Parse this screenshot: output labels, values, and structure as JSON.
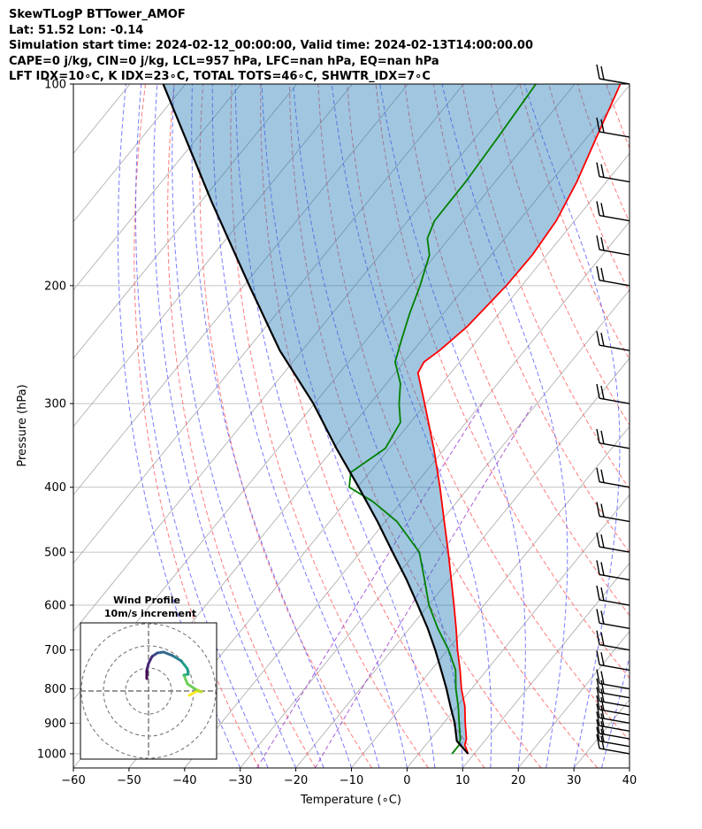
{
  "header": {
    "line1": "SkewTLogP BTTower_AMOF",
    "line2": "Lat: 51.52   Lon: -0.14",
    "line3": "Simulation start time: 2024-02-12_00:00:00, Valid time: 2024-02-13T14:00:00.00",
    "line4": "CAPE=0 j/kg, CIN=0 j/kg, LCL=957 hPa, LFC=nan hPa, EQ=nan hPa",
    "line5": "LFT IDX=10∘C, K IDX=23∘C, TOTAL TOTS=46∘C, SHWTR_IDX=7∘C"
  },
  "chart_data": {
    "type": "line",
    "xlabel": "Temperature (∘C)",
    "ylabel": "Pressure (hPa)",
    "xlim": [
      -60,
      40
    ],
    "ylim": [
      1050,
      100
    ],
    "y_scale": "log",
    "grid": true,
    "x_ticks": [
      "−60",
      "−50",
      "−40",
      "−30",
      "−20",
      "−10",
      "0",
      "10",
      "20",
      "30",
      "40"
    ],
    "x_tick_values": [
      -60,
      -50,
      -40,
      -30,
      -20,
      -10,
      0,
      10,
      20,
      30,
      40
    ],
    "y_ticks": [
      "100",
      "200",
      "300",
      "400",
      "500",
      "600",
      "700",
      "800",
      "900",
      "1000"
    ],
    "y_tick_values": [
      100,
      200,
      300,
      400,
      500,
      600,
      700,
      800,
      900,
      1000
    ],
    "skew": "isotherms skewed",
    "series": [
      {
        "role": "temperature",
        "color": "#ff0000",
        "pressure": [
          1000,
          970,
          950,
          900,
          850,
          800,
          750,
          700,
          650,
          600,
          550,
          500,
          450,
          400,
          350,
          300,
          270,
          260,
          250,
          230,
          200,
          180,
          160,
          140,
          120,
          100
        ],
        "temperature": [
          8.9,
          7.0,
          6.4,
          3.9,
          1.4,
          -1.8,
          -4.8,
          -8.2,
          -11.6,
          -15.4,
          -19.6,
          -24.2,
          -29.4,
          -35.2,
          -42.0,
          -50.2,
          -55.9,
          -56.4,
          -55.3,
          -53.8,
          -52.8,
          -52.6,
          -53.3,
          -55.3,
          -58.3,
          -61.8
        ]
      },
      {
        "role": "dewpoint",
        "color": "#008000",
        "pressure": [
          1000,
          970,
          950,
          900,
          850,
          800,
          750,
          700,
          650,
          600,
          550,
          500,
          450,
          420,
          400,
          380,
          350,
          320,
          300,
          280,
          260,
          240,
          220,
          200,
          180,
          170,
          160,
          140,
          120,
          100
        ],
        "temperature": [
          6.0,
          6.0,
          5.3,
          2.8,
          0.2,
          -2.8,
          -5.6,
          -9.8,
          -14.9,
          -19.9,
          -24.4,
          -29.4,
          -37.9,
          -45.2,
          -51.5,
          -53.4,
          -50.7,
          -51.8,
          -54.8,
          -57.5,
          -61.6,
          -63.8,
          -66.1,
          -68.3,
          -71.1,
          -73.9,
          -75.2,
          -75.3,
          -76.0,
          -77.0
        ]
      },
      {
        "role": "parcel",
        "color": "#000000",
        "pressure": [
          1000,
          957,
          900,
          850,
          800,
          750,
          700,
          650,
          600,
          550,
          500,
          450,
          400,
          350,
          300,
          250,
          200,
          150,
          100
        ],
        "temperature": [
          8.9,
          5.0,
          2.0,
          -1.2,
          -4.5,
          -8.2,
          -12.2,
          -16.7,
          -21.9,
          -27.6,
          -34.2,
          -41.4,
          -49.8,
          -59.5,
          -70.2,
          -84.0,
          -99.0,
          -118.0,
          -144.0
        ]
      }
    ],
    "wind_barbs": {
      "color": "#000000",
      "pressure": [
        1000,
        975,
        950,
        925,
        900,
        875,
        850,
        825,
        800,
        750,
        700,
        650,
        600,
        550,
        500,
        450,
        400,
        350,
        300,
        250,
        200,
        180,
        160,
        140,
        120,
        100
      ]
    },
    "inset": {
      "title": "Wind Profile",
      "subtitle": "10m/s increment",
      "rings": 3,
      "colormap": "viridis"
    }
  }
}
